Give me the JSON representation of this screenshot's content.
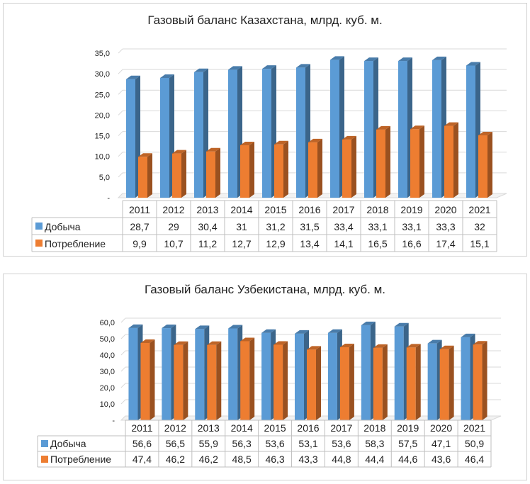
{
  "chart_data": [
    {
      "type": "bar",
      "title": "Газовый баланс Казахстана, млрд. куб. м.",
      "categories": [
        "2011",
        "2012",
        "2013",
        "2014",
        "2015",
        "2016",
        "2017",
        "2018",
        "2019",
        "2020",
        "2021"
      ],
      "series": [
        {
          "name": "Добыча",
          "color": "#5b9bd5",
          "values": [
            28.7,
            29,
            30.4,
            31,
            31.2,
            31.5,
            33.4,
            33.1,
            33.1,
            33.3,
            32
          ],
          "labels": [
            "28,7",
            "29",
            "30,4",
            "31",
            "31,2",
            "31,5",
            "33,4",
            "33,1",
            "33,1",
            "33,3",
            "32"
          ]
        },
        {
          "name": "Потребление",
          "color": "#ed7d31",
          "values": [
            9.9,
            10.7,
            11.2,
            12.7,
            12.9,
            13.4,
            14.1,
            16.5,
            16.6,
            17.4,
            15.1
          ],
          "labels": [
            "9,9",
            "10,7",
            "11,2",
            "12,7",
            "12,9",
            "13,4",
            "14,1",
            "16,5",
            "16,6",
            "17,4",
            "15,1"
          ]
        }
      ],
      "ylim": [
        0,
        35
      ],
      "yticks": [
        "-",
        "5,0",
        "10,0",
        "15,0",
        "20,0",
        "25,0",
        "30,0",
        "35,0"
      ],
      "grid": true,
      "legend": "data-table"
    },
    {
      "type": "bar",
      "title": "Газовый баланс Узбекистана, млрд. куб. м.",
      "categories": [
        "2011",
        "2012",
        "2013",
        "2014",
        "2015",
        "2016",
        "2017",
        "2018",
        "2019",
        "2020",
        "2021"
      ],
      "series": [
        {
          "name": "Добыча",
          "color": "#5b9bd5",
          "values": [
            56.6,
            56.5,
            55.9,
            56.3,
            53.6,
            53.1,
            53.6,
            58.3,
            57.5,
            47.1,
            50.9
          ],
          "labels": [
            "56,6",
            "56,5",
            "55,9",
            "56,3",
            "53,6",
            "53,1",
            "53,6",
            "58,3",
            "57,5",
            "47,1",
            "50,9"
          ]
        },
        {
          "name": "Потребление",
          "color": "#ed7d31",
          "values": [
            47.4,
            46.2,
            46.2,
            48.5,
            46.3,
            43.3,
            44.8,
            44.4,
            44.6,
            43.6,
            46.4
          ],
          "labels": [
            "47,4",
            "46,2",
            "46,2",
            "48,5",
            "46,3",
            "43,3",
            "44,8",
            "44,4",
            "44,6",
            "43,6",
            "46,4"
          ]
        }
      ],
      "ylim": [
        0,
        60
      ],
      "yticks": [
        "-",
        "10,0",
        "20,0",
        "30,0",
        "40,0",
        "50,0",
        "60,0"
      ],
      "grid": true,
      "legend": "data-table"
    }
  ]
}
